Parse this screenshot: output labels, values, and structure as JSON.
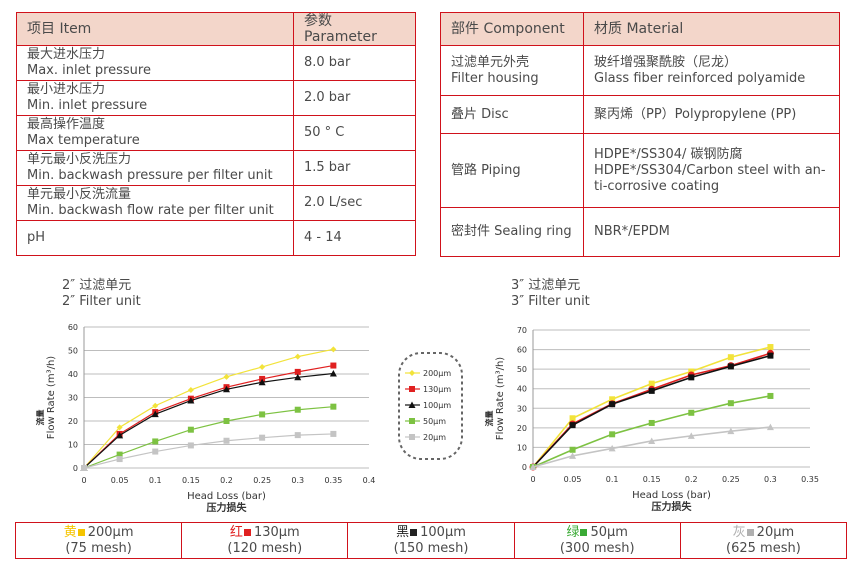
{
  "params_table": {
    "headers": [
      "项目 Item",
      "参数 Parameter"
    ],
    "rows": [
      {
        "cn": "最大进水压力",
        "en": "Max. inlet pressure",
        "value": "8.0 bar"
      },
      {
        "cn": "最小进水压力",
        "en": "Min. inlet pressure",
        "value": "2.0 bar"
      },
      {
        "cn": "最高操作温度",
        "en": "Max temperature",
        "value": "50 ° C"
      },
      {
        "cn": "单元最小反洗压力",
        "en": "Min. backwash pressure per filter unit",
        "value": "1.5 bar"
      },
      {
        "cn": "单元最小反洗流量",
        "en": "Min. backwash flow rate per filter unit",
        "value": "2.0 L/sec"
      },
      {
        "cn": "pH",
        "en": "",
        "value": "4 - 14"
      }
    ]
  },
  "material_table": {
    "headers": [
      "部件 Component",
      "材质 Material"
    ],
    "rows": [
      {
        "component": [
          "过滤单元外壳",
          "Filter housing"
        ],
        "material": [
          "玻纤增强聚酰胺（尼龙）",
          "Glass fiber reinforced polyamide"
        ]
      },
      {
        "component": [
          "叠片 Disc"
        ],
        "material": [
          "聚丙烯（PP）Polypropylene (PP)"
        ]
      },
      {
        "component": [
          "管路 Piping"
        ],
        "material": [
          "HDPE*/SS304/ 碳钢防腐",
          "HDPE*/SS304/Carbon steel with an-",
          "ti-corrosive coating"
        ]
      },
      {
        "component": [
          "密封件 Sealing ring"
        ],
        "material": [
          "NBR*/EPDM"
        ]
      }
    ]
  },
  "chart_data": [
    {
      "type": "line",
      "title_cn": "2″ 过滤单元",
      "title_en": "2″ Filter unit",
      "xlabel": "Head Loss (bar)",
      "xlabel_cn": "压力损失",
      "ylabel": "Flow Rate (m³/h)",
      "ylabel_cn": "流量",
      "xlim": [
        0,
        0.4
      ],
      "ylim": [
        0,
        60
      ],
      "xticks": [
        "0",
        "0.05",
        "0.1",
        "0.15",
        "0.2",
        "0.25",
        "0.3",
        "0.35",
        "0.4"
      ],
      "yticks": [
        "0",
        "10",
        "20",
        "30",
        "40",
        "50",
        "60"
      ],
      "grid": true,
      "legend": "right",
      "x": [
        0,
        0.05,
        0.1,
        0.15,
        0.2,
        0.25,
        0.3,
        0.35
      ],
      "series": [
        {
          "name": "200μm",
          "color": "#f2e33a",
          "marker": "diamond",
          "values": [
            0,
            17.3,
            26.5,
            33.2,
            38.8,
            43,
            47.4,
            50.5
          ]
        },
        {
          "name": "130μm",
          "color": "#e02020",
          "marker": "square",
          "values": [
            0,
            14.5,
            23.8,
            29.5,
            34.4,
            37.9,
            40.9,
            43.6
          ]
        },
        {
          "name": "100μm",
          "color": "#111111",
          "marker": "triangle",
          "values": [
            0,
            13.9,
            22.9,
            28.7,
            33.5,
            36.5,
            38.6,
            40.2
          ]
        },
        {
          "name": "50μm",
          "color": "#7dc242",
          "marker": "square",
          "values": [
            0,
            5.7,
            11.3,
            16.3,
            20,
            22.8,
            24.8,
            26.1
          ]
        },
        {
          "name": "20μm",
          "color": "#c4c4c4",
          "marker": "square",
          "values": [
            0,
            3.8,
            7,
            9.6,
            11.6,
            12.9,
            14,
            14.5
          ]
        }
      ]
    },
    {
      "type": "line",
      "title_cn": "3″ 过滤单元",
      "title_en": "3″ Filter unit",
      "xlabel": "Head Loss (bar)",
      "xlabel_cn": "压力损失",
      "ylabel": "Flow Rate (m³/h)",
      "ylabel_cn": "流量",
      "xlim": [
        0,
        0.35
      ],
      "ylim": [
        0,
        70
      ],
      "xticks": [
        "0",
        "0.05",
        "0.1",
        "0.15",
        "0.2",
        "0.25",
        "0.3",
        "0.35"
      ],
      "yticks": [
        "0",
        "10",
        "20",
        "30",
        "40",
        "50",
        "60",
        "70"
      ],
      "grid": true,
      "x": [
        0,
        0.05,
        0.1,
        0.15,
        0.2,
        0.25,
        0.3
      ],
      "series": [
        {
          "color": "#f2e33a",
          "marker": "square",
          "values": [
            0,
            24.9,
            34.6,
            42.6,
            48.8,
            56.1,
            61.3
          ]
        },
        {
          "color": "#e02020",
          "marker": "circle",
          "values": [
            0,
            22,
            32.3,
            39.7,
            47,
            51.8,
            58.1
          ]
        },
        {
          "color": "#111111",
          "marker": "square",
          "values": [
            0,
            21.4,
            32.1,
            38.9,
            45.8,
            51.4,
            56.9
          ]
        },
        {
          "color": "#7dc242",
          "marker": "square",
          "values": [
            0,
            8.8,
            16.7,
            22.5,
            27.7,
            32.6,
            36.3
          ]
        },
        {
          "color": "#c4c4c4",
          "marker": "triangle",
          "values": [
            0,
            5.7,
            9.5,
            13.3,
            15.9,
            18.3,
            20.4
          ]
        }
      ]
    }
  ],
  "color_key": [
    {
      "cn": "黄",
      "size": "200μm",
      "mesh": "(75 mesh)",
      "color": "#f5c400"
    },
    {
      "cn": "红",
      "size": "130μm",
      "mesh": "(120 mesh)",
      "color": "#e02020"
    },
    {
      "cn": "黑",
      "size": "100μm",
      "mesh": "(150 mesh)",
      "color": "#222222"
    },
    {
      "cn": "绿",
      "size": "50μm",
      "mesh": "(300 mesh)",
      "color": "#3aaa35"
    },
    {
      "cn": "灰",
      "size": "20μm",
      "mesh": "(625 mesh)",
      "color": "#b0b0b0"
    }
  ]
}
